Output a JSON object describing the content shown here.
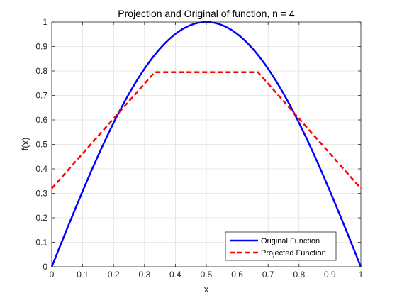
{
  "chart_data": {
    "type": "line",
    "title": "Projection and Original of function, n = 4",
    "xlabel": "x",
    "ylabel": "f(x)",
    "xlim": [
      0,
      1
    ],
    "ylim": [
      0,
      1
    ],
    "xticks": [
      "0",
      "0.1",
      "0.2",
      "0.3",
      "0.4",
      "0.5",
      "0.6",
      "0.7",
      "0.8",
      "0.9",
      "1"
    ],
    "yticks": [
      "0",
      "0.1",
      "0.2",
      "0.3",
      "0.4",
      "0.5",
      "0.6",
      "0.7",
      "0.8",
      "0.9",
      "1"
    ],
    "grid": true,
    "legend_position": "bottom-right",
    "series": [
      {
        "name": "Original Function",
        "color": "#0000ff",
        "style": "solid",
        "x": [
          0,
          0.05,
          0.1,
          0.15,
          0.2,
          0.25,
          0.3,
          0.35,
          0.4,
          0.45,
          0.5,
          0.55,
          0.6,
          0.65,
          0.7,
          0.75,
          0.8,
          0.85,
          0.9,
          0.95,
          1
        ],
        "y": [
          0,
          0.156,
          0.309,
          0.454,
          0.588,
          0.707,
          0.809,
          0.891,
          0.951,
          0.988,
          1,
          0.988,
          0.951,
          0.891,
          0.809,
          0.707,
          0.588,
          0.454,
          0.309,
          0.156,
          0
        ]
      },
      {
        "name": "Projected Function",
        "color": "#ff0000",
        "style": "dashed",
        "x": [
          0,
          0.333,
          0.667,
          1
        ],
        "y": [
          0.32,
          0.795,
          0.795,
          0.32
        ]
      }
    ]
  }
}
